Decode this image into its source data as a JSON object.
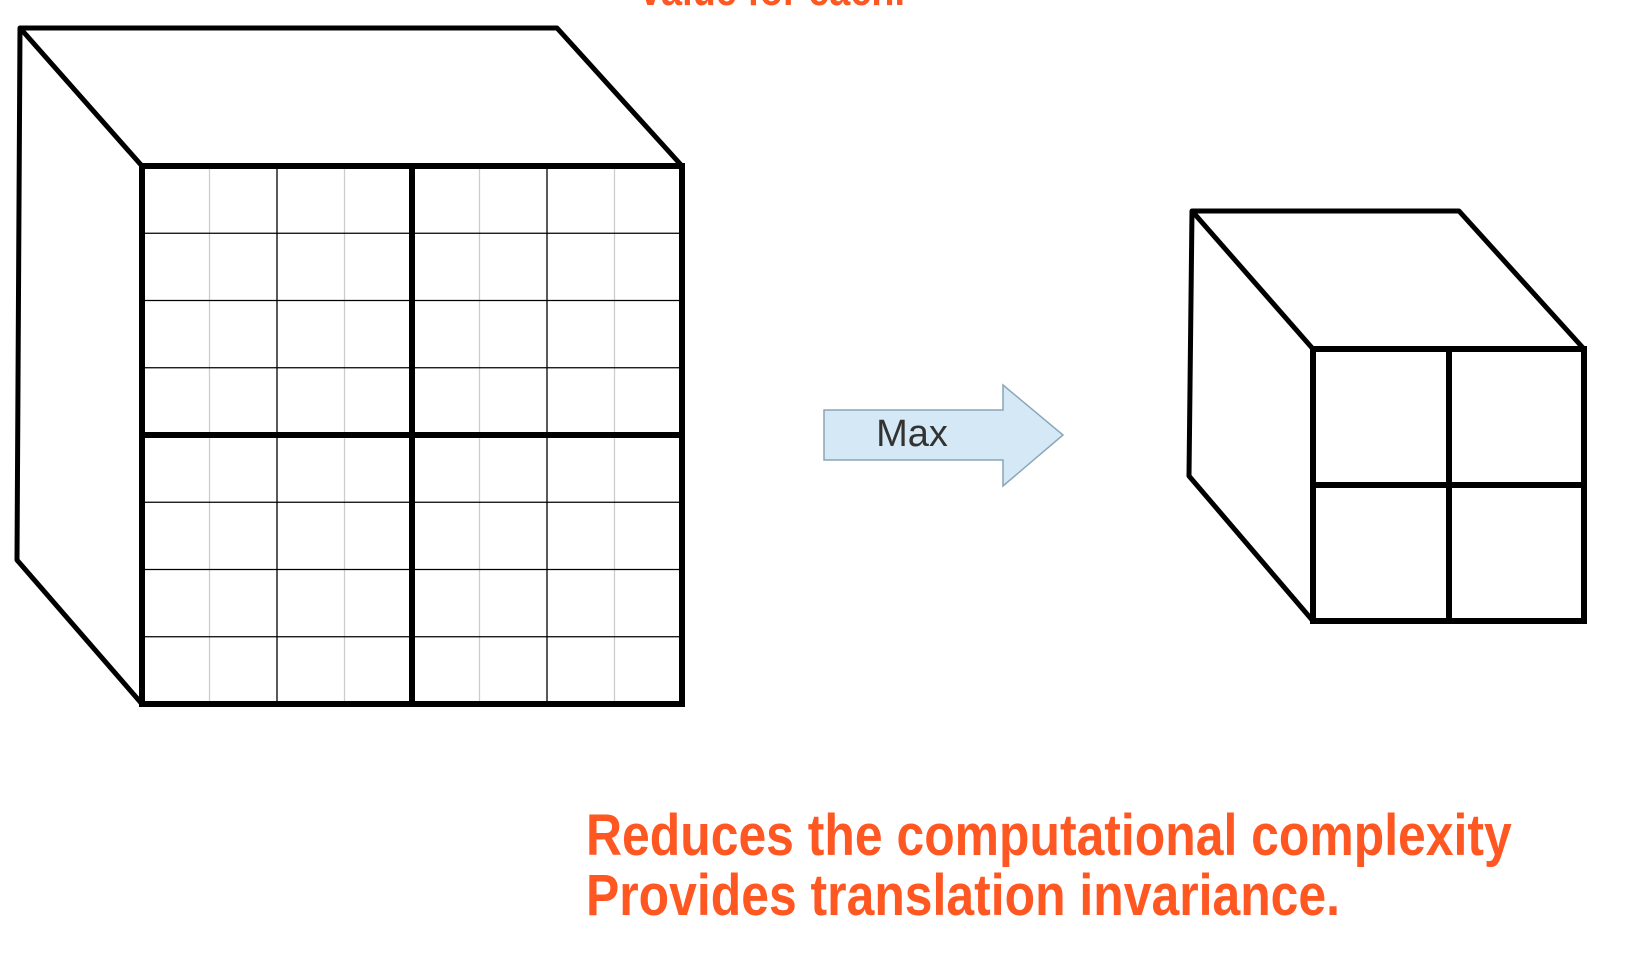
{
  "header": {
    "text": "value for each."
  },
  "arrow": {
    "label": "Max",
    "fill": "#d4e9f5",
    "stroke": "#8aa6b8"
  },
  "input_cube": {
    "grid_rows": 8,
    "grid_cols": 8,
    "pool_blocks": 2
  },
  "output_cube": {
    "grid_rows": 2,
    "grid_cols": 2
  },
  "notes": {
    "line1": "Reduces the computational complexity",
    "line2": "Provides translation invariance."
  },
  "colors": {
    "accent": "#ff5722",
    "line": "#000000",
    "thin_grid": "#000000",
    "faint_grid": "#cccccc"
  }
}
